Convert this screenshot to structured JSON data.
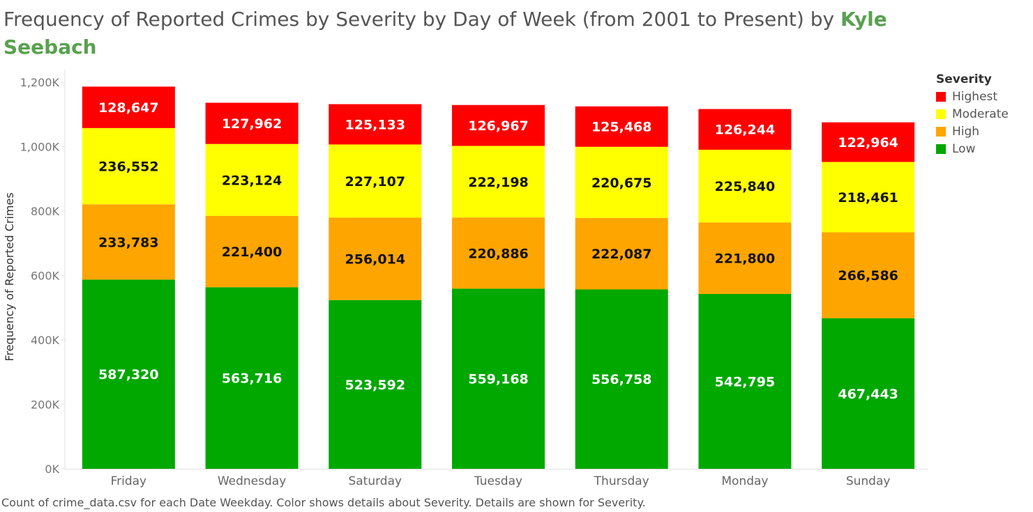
{
  "title": {
    "main": "Frequency of Reported Crimes by Severity by Day of Week (from 2001 to Present) by ",
    "author": "Kyle Seebach"
  },
  "caption": "Count of crime_data.csv for each Date Weekday.  Color shows details about Severity.  Details are shown for Severity.",
  "legend": {
    "title": "Severity",
    "items": [
      {
        "label": "Highest",
        "color": "#ff0000"
      },
      {
        "label": "Moderate",
        "color": "#ffff00"
      },
      {
        "label": "High",
        "color": "#ffa500"
      },
      {
        "label": "Low",
        "color": "#00a800"
      }
    ]
  },
  "chart_data": {
    "type": "bar",
    "stacked": true,
    "ylabel": "Frequency of Reported Crimes",
    "ylim": [
      0,
      1200000
    ],
    "yticks": [
      0,
      200000,
      400000,
      600000,
      800000,
      1000000,
      1200000
    ],
    "ytick_labels": [
      "0K",
      "200K",
      "400K",
      "600K",
      "800K",
      "1,000K",
      "1,200K"
    ],
    "categories": [
      "Friday",
      "Wednesday",
      "Saturday",
      "Tuesday",
      "Thursday",
      "Monday",
      "Sunday"
    ],
    "series": [
      {
        "name": "Low",
        "color": "#00a800",
        "label_color": "#ffffff",
        "values": [
          587320,
          563716,
          523592,
          559168,
          556758,
          542795,
          467443
        ],
        "labels": [
          "587,320",
          "563,716",
          "523,592",
          "559,168",
          "556,758",
          "542,795",
          "467,443"
        ]
      },
      {
        "name": "High",
        "color": "#ffa500",
        "label_color": "#111111",
        "values": [
          233783,
          221400,
          256014,
          220886,
          222087,
          221800,
          266586
        ],
        "labels": [
          "233,783",
          "221,400",
          "256,014",
          "220,886",
          "222,087",
          "221,800",
          "266,586"
        ]
      },
      {
        "name": "Moderate",
        "color": "#ffff00",
        "label_color": "#111111",
        "values": [
          236552,
          223124,
          227107,
          222198,
          220675,
          225840,
          218461
        ],
        "labels": [
          "236,552",
          "223,124",
          "227,107",
          "222,198",
          "220,675",
          "225,840",
          "218,461"
        ]
      },
      {
        "name": "Highest",
        "color": "#ff0000",
        "label_color": "#ffffff",
        "values": [
          128647,
          127962,
          125133,
          126967,
          125468,
          126244,
          122964
        ],
        "labels": [
          "128,647",
          "127,962",
          "125,133",
          "126,967",
          "125,468",
          "126,244",
          "122,964"
        ]
      }
    ],
    "legend_position": "top-right",
    "grid": false
  }
}
